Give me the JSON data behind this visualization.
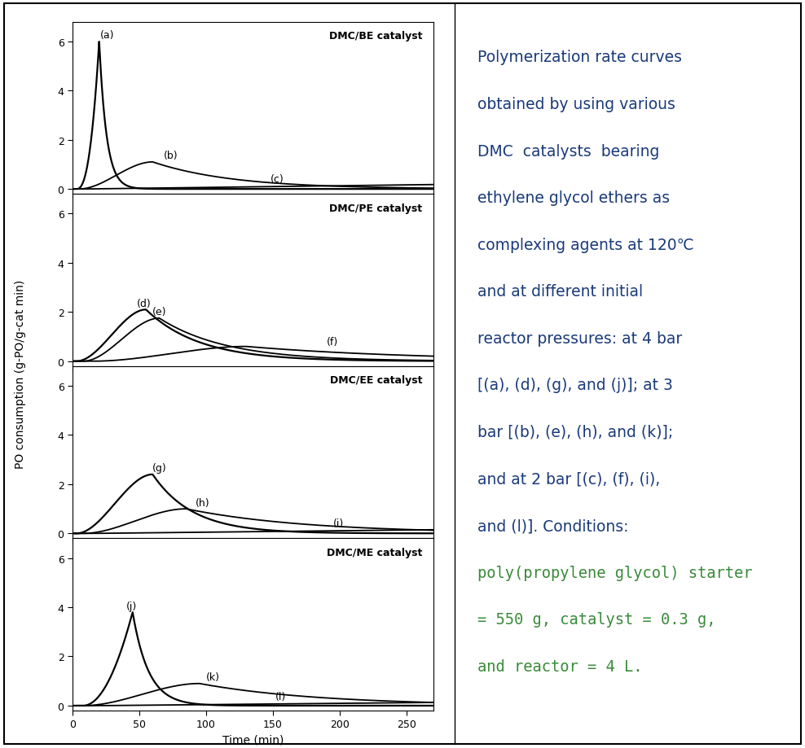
{
  "ylabel": "PO consumption (g-PO/g-cat min)",
  "xlabel": "Time (min)",
  "xlim": [
    0,
    270
  ],
  "ylim": [
    0,
    6.8
  ],
  "yticks": [
    0,
    2,
    4,
    6
  ],
  "xticks": [
    0,
    50,
    100,
    150,
    200,
    250
  ],
  "subplot_titles": [
    "DMC/BE catalyst",
    "DMC/PE catalyst",
    "DMC/EE catalyst",
    "DMC/ME catalyst"
  ],
  "background_color": "#ffffff",
  "text_color_main": "#1a3a7a",
  "text_color_green": "#3a8a3a",
  "main_text_line1": "Polymerization rate curves",
  "main_text_line2": "obtained by using various",
  "main_text_line3": "DMC  catalysts  bearing",
  "main_text_line4": "ethylene glycol ethers as",
  "main_text_line5": "complexing agents at 120℃",
  "main_text_line6": "and at different initial",
  "main_text_line7": "reactor pressures: at 4 bar",
  "main_text_line8": "[(a), (d), (g), and (j)]; at 3",
  "main_text_line9": "bar [(b), (e), (h), and (k)];",
  "main_text_line10": "and at 2 bar [(c), (f), (i),",
  "main_text_line11": "and (l)]. Conditions:",
  "green_text_line1": "poly(propylene glycol) starter",
  "green_text_line2": "= 550 g, catalyst = 0.3 g,",
  "green_text_line3": "and reactor = 4 L."
}
